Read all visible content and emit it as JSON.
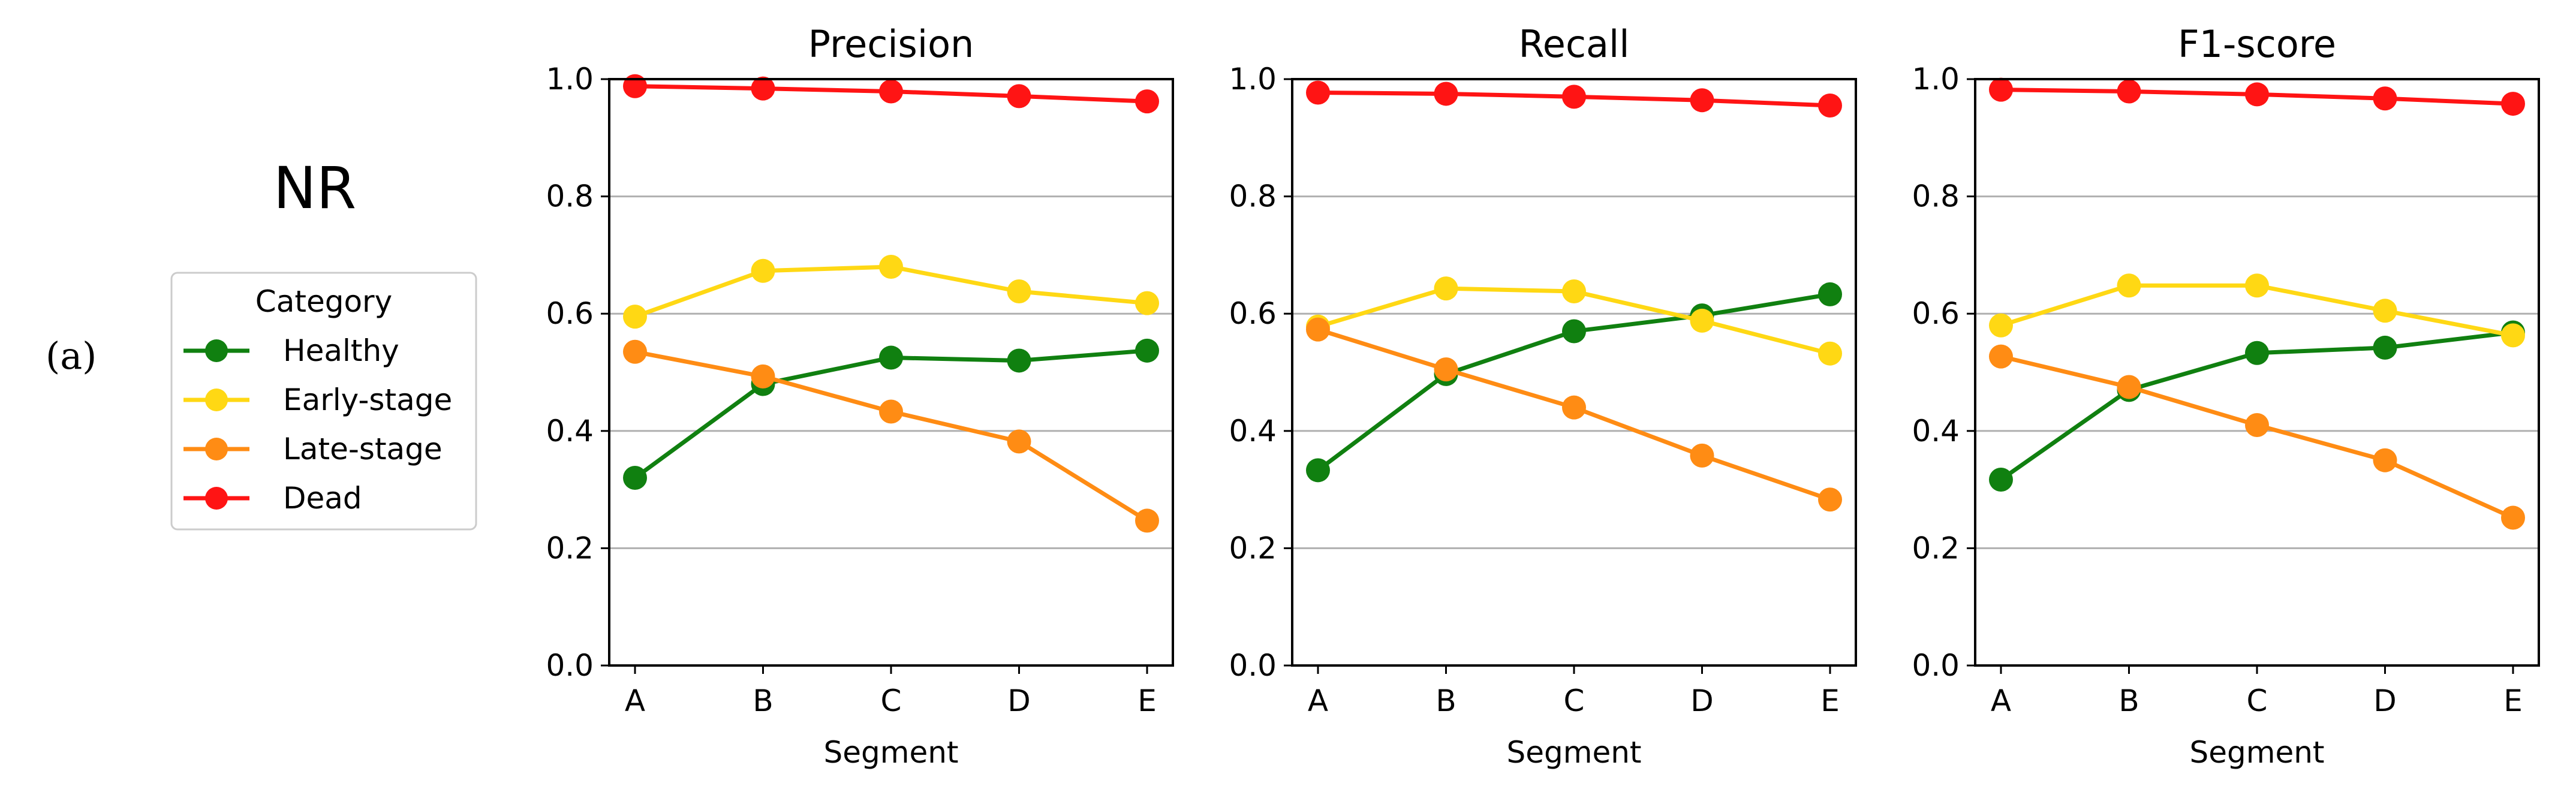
{
  "panel_label": "(a)",
  "group_label": "NR",
  "legend": {
    "title": "Category",
    "entries": [
      "Healthy",
      "Early-stage",
      "Late-stage",
      "Dead"
    ]
  },
  "colors": {
    "Healthy": "#108010",
    "Early-stage": "#FFD814",
    "Late-stage": "#FF8C14",
    "Dead": "#FF1414",
    "grid": "#b0b0b0",
    "axis": "#000000"
  },
  "chart_data": [
    {
      "type": "line",
      "title": "Precision",
      "xlabel": "Segment",
      "ylabel": "",
      "categories": [
        "A",
        "B",
        "C",
        "D",
        "E"
      ],
      "ylim": [
        0,
        1
      ],
      "yticks": [
        "0.0",
        "0.2",
        "0.4",
        "0.6",
        "0.8",
        "1.0"
      ],
      "series": [
        {
          "name": "Healthy",
          "values": [
            0.32,
            0.48,
            0.525,
            0.52,
            0.537
          ]
        },
        {
          "name": "Early-stage",
          "values": [
            0.595,
            0.673,
            0.68,
            0.638,
            0.618
          ]
        },
        {
          "name": "Late-stage",
          "values": [
            0.535,
            0.493,
            0.433,
            0.382,
            0.247
          ]
        },
        {
          "name": "Dead",
          "values": [
            0.988,
            0.984,
            0.979,
            0.971,
            0.962
          ]
        }
      ]
    },
    {
      "type": "line",
      "title": "Recall",
      "xlabel": "Segment",
      "ylabel": "",
      "categories": [
        "A",
        "B",
        "C",
        "D",
        "E"
      ],
      "ylim": [
        0,
        1
      ],
      "yticks": [
        "0.0",
        "0.2",
        "0.4",
        "0.6",
        "0.8",
        "1.0"
      ],
      "series": [
        {
          "name": "Healthy",
          "values": [
            0.333,
            0.497,
            0.57,
            0.597,
            0.633
          ]
        },
        {
          "name": "Early-stage",
          "values": [
            0.578,
            0.643,
            0.638,
            0.588,
            0.532
          ]
        },
        {
          "name": "Late-stage",
          "values": [
            0.573,
            0.505,
            0.44,
            0.358,
            0.283
          ]
        },
        {
          "name": "Dead",
          "values": [
            0.977,
            0.975,
            0.97,
            0.964,
            0.955
          ]
        }
      ]
    },
    {
      "type": "line",
      "title": "F1-score",
      "xlabel": "Segment",
      "ylabel": "",
      "categories": [
        "A",
        "B",
        "C",
        "D",
        "E"
      ],
      "ylim": [
        0,
        1
      ],
      "yticks": [
        "0.0",
        "0.2",
        "0.4",
        "0.6",
        "0.8",
        "1.0"
      ],
      "series": [
        {
          "name": "Healthy",
          "values": [
            0.317,
            0.47,
            0.533,
            0.542,
            0.568
          ]
        },
        {
          "name": "Early-stage",
          "values": [
            0.58,
            0.648,
            0.648,
            0.605,
            0.563
          ]
        },
        {
          "name": "Late-stage",
          "values": [
            0.527,
            0.475,
            0.41,
            0.35,
            0.252
          ]
        },
        {
          "name": "Dead",
          "values": [
            0.982,
            0.979,
            0.974,
            0.967,
            0.958
          ]
        }
      ]
    }
  ]
}
